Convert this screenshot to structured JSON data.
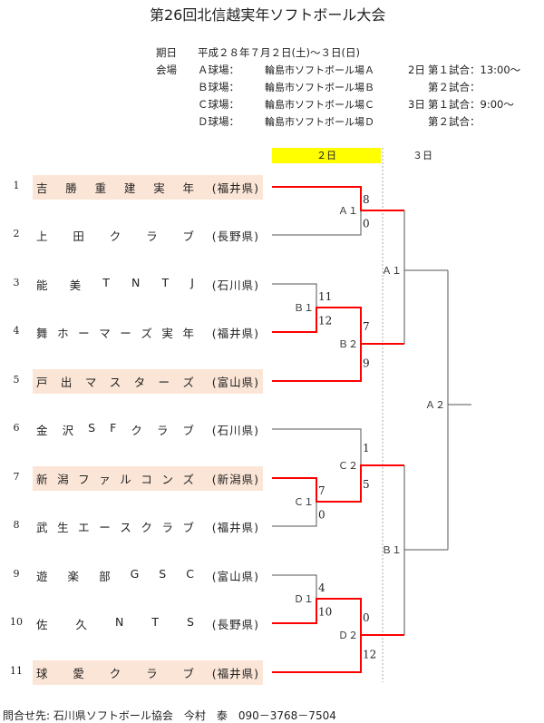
{
  "title": "第26回北信越実年ソフトボール大会",
  "info": {
    "date_label": "期日",
    "date_value": "平成２８年７月２日(土)～３日(日)",
    "venue_label": "会場",
    "venues": [
      {
        "field": "Ａ球場：",
        "name": "輪島市ソフトボール場Ａ"
      },
      {
        "field": "Ｂ球場：",
        "name": "輪島市ソフトボール場Ｂ"
      },
      {
        "field": "Ｃ球場：",
        "name": "輪島市ソフトボール場Ｃ"
      },
      {
        "field": "Ｄ球場：",
        "name": "輪島市ソフトボール場Ｄ"
      }
    ],
    "schedule": [
      {
        "day": "2日",
        "game": "第１試合：13:00～"
      },
      {
        "day": "",
        "game": "第２試合："
      },
      {
        "day": "3日",
        "game": "第１試合：9:00～"
      },
      {
        "day": "",
        "game": "第２試合："
      }
    ]
  },
  "days": {
    "day2": "２日",
    "day3": "３日"
  },
  "teams": [
    {
      "no": "1",
      "chars": [
        "吉",
        "勝",
        "重",
        "建",
        "実",
        "年"
      ],
      "pref": "(福井県)",
      "seeded": true
    },
    {
      "no": "2",
      "chars": [
        "上",
        "田",
        "ク",
        "ラ",
        "ブ"
      ],
      "pref": "(長野県)",
      "seeded": false
    },
    {
      "no": "3",
      "chars": [
        "能",
        "美",
        "T",
        "N",
        "T",
        "J"
      ],
      "pref": "(石川県)",
      "seeded": false
    },
    {
      "no": "4",
      "chars": [
        "舞",
        "ホ",
        "ー",
        "マ",
        "ー",
        "ズ",
        "実",
        "年"
      ],
      "pref": "(福井県)",
      "seeded": false
    },
    {
      "no": "5",
      "chars": [
        "戸",
        "出",
        "マ",
        "ス",
        "タ",
        "ー",
        "ズ"
      ],
      "pref": "(富山県)",
      "seeded": true
    },
    {
      "no": "6",
      "chars": [
        "金",
        "沢",
        "S",
        "F",
        "ク",
        "ラ",
        "ブ"
      ],
      "pref": "(石川県)",
      "seeded": false
    },
    {
      "no": "7",
      "chars": [
        "新",
        "潟",
        "フ",
        "ァ",
        "ル",
        "コ",
        "ン",
        "ズ"
      ],
      "pref": "(新潟県)",
      "seeded": true
    },
    {
      "no": "8",
      "chars": [
        "武",
        "生",
        "エ",
        "ー",
        "ス",
        "ク",
        "ラ",
        "ブ"
      ],
      "pref": "(福井県)",
      "seeded": false
    },
    {
      "no": "9",
      "chars": [
        "遊",
        "楽",
        "部",
        "G",
        "S",
        "C"
      ],
      "pref": "(富山県)",
      "seeded": false
    },
    {
      "no": "10",
      "chars": [
        "佐",
        "久",
        "N",
        "T",
        "S"
      ],
      "pref": "(長野県)",
      "seeded": false
    },
    {
      "no": "11",
      "chars": [
        "球",
        "愛",
        "ク",
        "ラ",
        "ブ"
      ],
      "pref": "(福井県)",
      "seeded": true
    }
  ],
  "matches": {
    "A1": {
      "label": "Ａ１",
      "top": "8",
      "bottom": "0"
    },
    "B1": {
      "label": "Ｂ１",
      "top": "11",
      "bottom": "12"
    },
    "B2": {
      "label": "Ｂ２",
      "top": "7",
      "bottom": "9"
    },
    "C1": {
      "label": "Ｃ１",
      "top": "7",
      "bottom": "0"
    },
    "C2": {
      "label": "Ｃ２",
      "top": "1",
      "bottom": "5"
    },
    "D1": {
      "label": "Ｄ１",
      "top": "4",
      "bottom": "10"
    },
    "D2": {
      "label": "Ｄ２",
      "top": "0",
      "bottom": "12"
    },
    "SA1": {
      "label": "Ａ１"
    },
    "SB1": {
      "label": "Ｂ１"
    },
    "F": {
      "label": "Ａ２"
    }
  },
  "colors": {
    "winner_line": "#ff0000",
    "line": "#555555",
    "seed_bg": "#fbe5d6",
    "day2_bg": "#ffff00"
  },
  "footer": "問合せ先: 石川県ソフトボール協会　今村　泰　090－3768－7504"
}
